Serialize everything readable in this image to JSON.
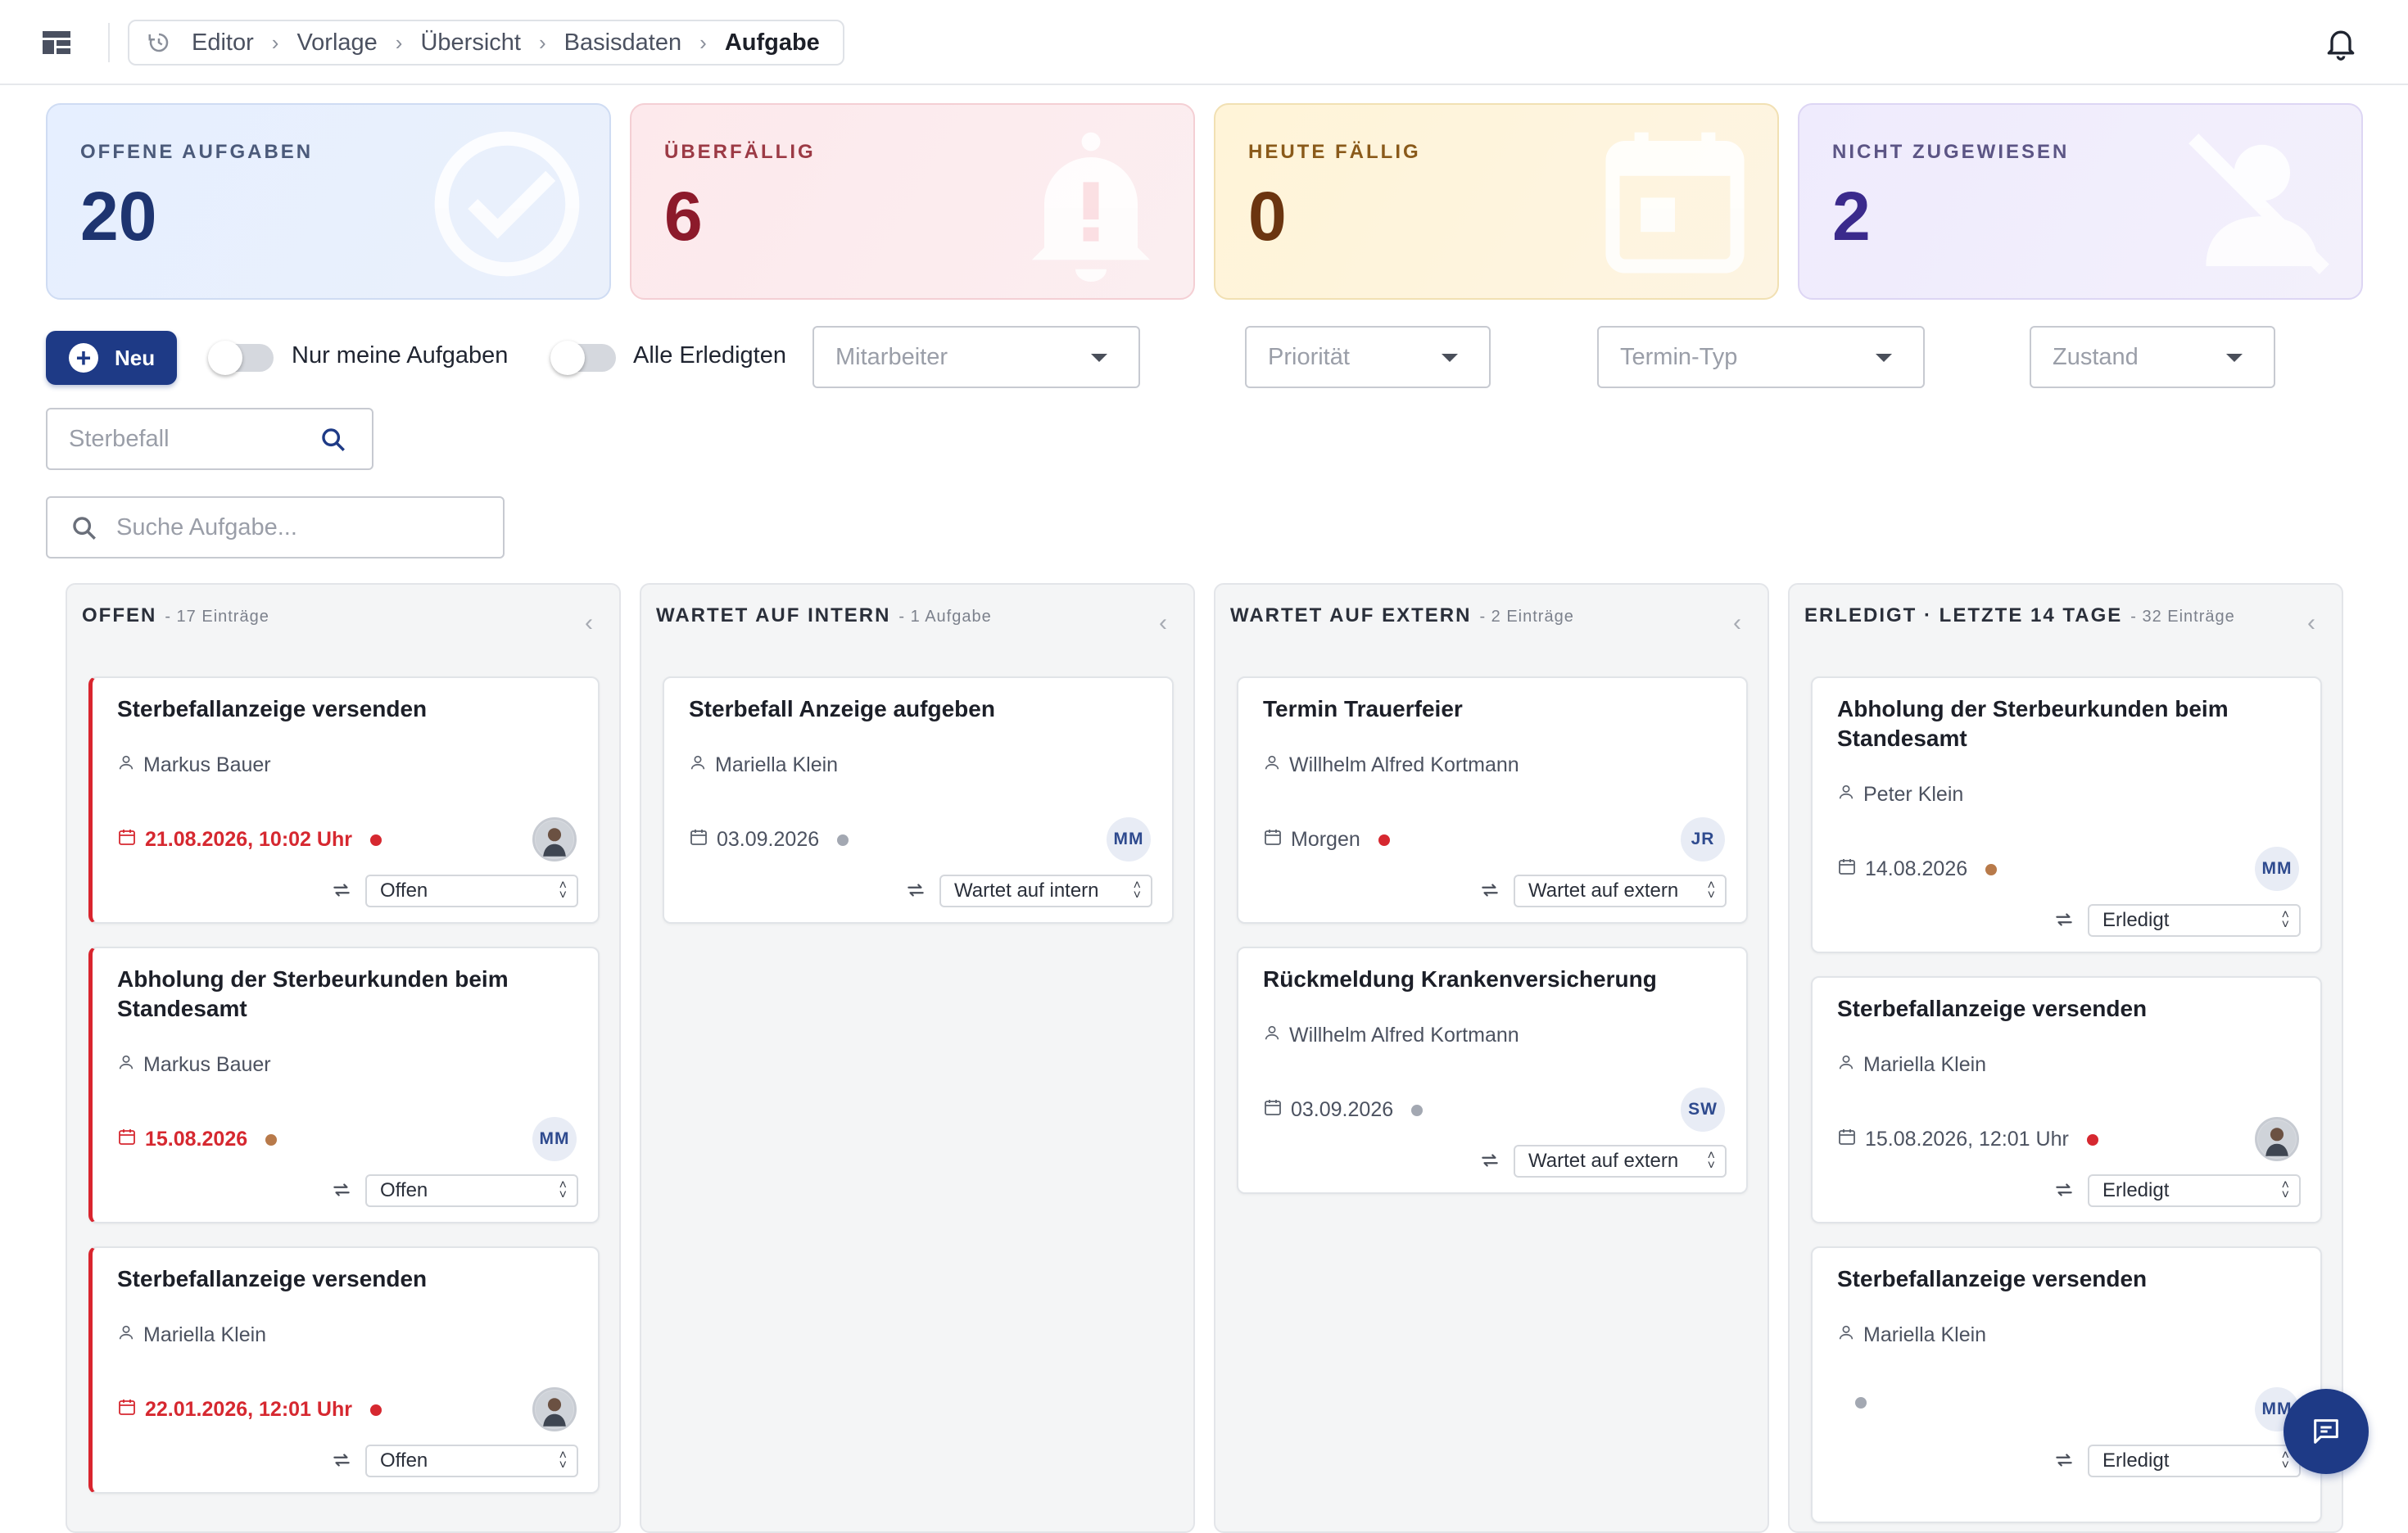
{
  "breadcrumb": {
    "items": [
      "Editor",
      "Vorlage",
      "Übersicht",
      "Basisdaten",
      "Aufgabe"
    ]
  },
  "stats": [
    {
      "label": "OFFENE AUFGABEN",
      "value": "20",
      "icon": "check-circle-icon"
    },
    {
      "label": "ÜBERFÄLLIG",
      "value": "6",
      "icon": "bell-alert-icon"
    },
    {
      "label": "HEUTE FÄLLIG",
      "value": "0",
      "icon": "calendar-today-icon"
    },
    {
      "label": "NICHT ZUGEWIESEN",
      "value": "2",
      "icon": "person-off-icon"
    }
  ],
  "toolbar": {
    "new_label": "Neu",
    "toggle_mine_label": "Nur meine Aufgaben",
    "toggle_done_label": "Alle Erledigten",
    "filters": {
      "employee": "Mitarbeiter",
      "priority": "Priorität",
      "appointment_type": "Termin-Typ",
      "state": "Zustand"
    },
    "case_search_placeholder": "Sterbefall",
    "task_search_placeholder": "Suche Aufgabe..."
  },
  "columns": [
    {
      "title": "OFFEN",
      "count": "- 17 Einträge",
      "cards": [
        {
          "title": "Sterbefallanzeige versenden",
          "person": "Markus Bauer",
          "date": "21.08.2026, 10:02 Uhr",
          "overdue": true,
          "dot": "#d62830",
          "avatar": "photo",
          "status": "Offen"
        },
        {
          "title": "Abholung der Sterbeurkunden beim Standesamt",
          "person": "Markus Bauer",
          "date": "15.08.2026",
          "overdue": true,
          "dot": "#b87a4a",
          "avatar": "MM",
          "status": "Offen"
        },
        {
          "title": "Sterbefallanzeige versenden",
          "person": "Mariella Klein",
          "date": "22.01.2026, 12:01 Uhr",
          "overdue": true,
          "dot": "#d62830",
          "avatar": "photo",
          "status": "Offen"
        }
      ]
    },
    {
      "title": "WARTET AUF INTERN",
      "count": "- 1 Aufgabe",
      "cards": [
        {
          "title": "Sterbefall Anzeige aufgeben",
          "person": "Mariella Klein",
          "date": "03.09.2026",
          "overdue": false,
          "dot": "#a3a8b2",
          "avatar": "MM",
          "status": "Wartet auf intern"
        }
      ]
    },
    {
      "title": "WARTET AUF EXTERN",
      "count": "- 2 Einträge",
      "cards": [
        {
          "title": "Termin Trauerfeier",
          "person": "Willhelm Alfred Kortmann",
          "date": "Morgen",
          "overdue": false,
          "dot": "#d62830",
          "avatar": "JR",
          "status": "Wartet auf extern"
        },
        {
          "title": "Rückmeldung Krankenversicherung",
          "person": "Willhelm Alfred Kortmann",
          "date": "03.09.2026",
          "overdue": false,
          "dot": "#a3a8b2",
          "avatar": "SW",
          "status": "Wartet auf extern"
        }
      ]
    },
    {
      "title": "ERLEDIGT · LETZTE 14 TAGE",
      "count": "- 32 Einträge",
      "cards": [
        {
          "title": "Abholung der Sterbeurkunden beim Standesamt",
          "person": "Peter Klein",
          "date": "14.08.2026",
          "overdue": false,
          "dot": "#b87a4a",
          "avatar": "MM",
          "status": "Erledigt"
        },
        {
          "title": "Sterbefallanzeige versenden",
          "person": "Mariella Klein",
          "date": "15.08.2026, 12:01 Uhr",
          "overdue": false,
          "dot": "#d62830",
          "avatar": "photo",
          "status": "Erledigt"
        },
        {
          "title": "Sterbefallanzeige versenden",
          "person": "Mariella Klein",
          "date": "",
          "overdue": false,
          "dot": "#a3a8b2",
          "avatar": "MM",
          "status": "Erledigt"
        }
      ]
    }
  ],
  "colors": {
    "brand": "#1e3a86",
    "overdue": "#d62830"
  }
}
